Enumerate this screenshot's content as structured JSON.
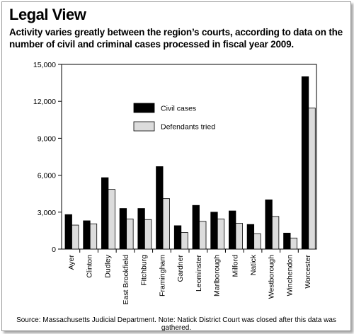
{
  "title": "Legal View",
  "subtitle": "Activity varies greatly between the region’s courts, according to data on the number of civil and criminal cases processed in fiscal year 2009.",
  "source": "Source: Massachusetts Judicial Department. Note: Natick District Court was closed after this data was gathered.",
  "colors": {
    "civil": "#000000",
    "defendants": "#dcdcdc",
    "axis": "#000000"
  },
  "chart_data": {
    "type": "bar",
    "title": "",
    "xlabel": "",
    "ylabel": "",
    "ylim": [
      0,
      15000
    ],
    "yticks": [
      0,
      3000,
      6000,
      9000,
      12000,
      15000
    ],
    "ytick_labels": [
      "0",
      "3,000",
      "6,000",
      "9,000",
      "12,000",
      "15,000"
    ],
    "grid": false,
    "legend_position": "upper-left inside plot",
    "categories": [
      "Ayer",
      "Clinton",
      "Dudley",
      "East Brookfield",
      "Fitchburg",
      "Framingham",
      "Gardner",
      "Leominster",
      "Marlborough",
      "Milford",
      "Natick",
      "Westborough",
      "Winchendon",
      "Worcester"
    ],
    "series": [
      {
        "name": "Civil cases",
        "values": [
          2800,
          2300,
          5800,
          3300,
          3300,
          6700,
          1900,
          3550,
          3000,
          3100,
          2000,
          4000,
          1300,
          14000
        ]
      },
      {
        "name": "Defendants tried",
        "values": [
          1950,
          2050,
          4850,
          2450,
          2400,
          4100,
          1350,
          2250,
          2450,
          2100,
          1250,
          2650,
          900,
          11450
        ]
      }
    ]
  }
}
